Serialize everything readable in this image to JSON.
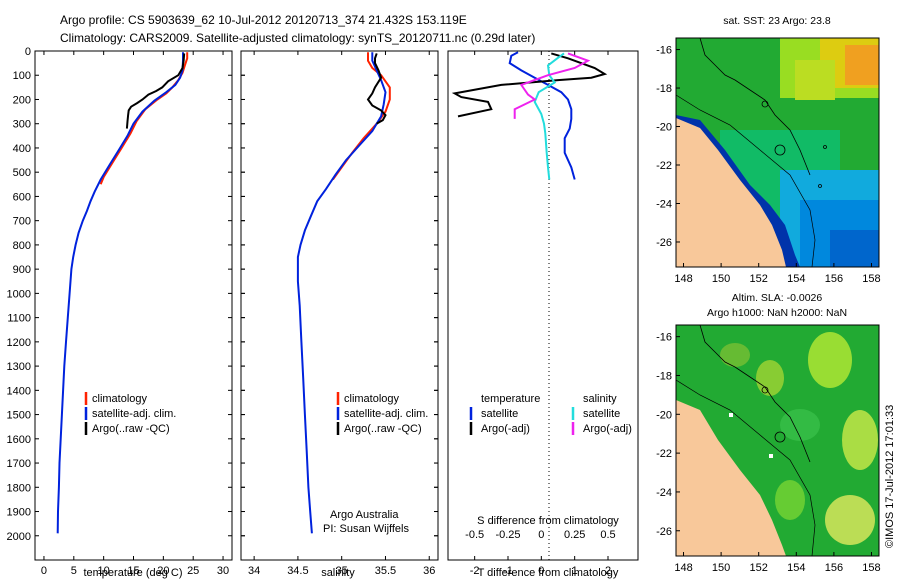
{
  "header": {
    "line1": "Argo profile: CS 5903639_62 10-Jul-2012 20120713_374 21.432S 153.119E",
    "line2": "Climatology: CARS2009. Satellite-adjusted climatology: synTS_20120711.nc (0.29d later)"
  },
  "colors": {
    "climatology": "#ff2200",
    "satellite": "#0022dd",
    "argo": "#000000",
    "sat_salinity": "#22dddd",
    "argo_salinity": "#ee22ee",
    "land": "#f8c89a"
  },
  "chart_data": [
    {
      "type": "line",
      "name": "temperature-profile",
      "xlabel": "temperature (deg C)",
      "ylabel": "",
      "xlim": [
        -1.5,
        31.5
      ],
      "ylim": [
        2100,
        0
      ],
      "xticks": [
        "0",
        "5",
        "10",
        "15",
        "20",
        "25",
        "30"
      ],
      "yticks": [
        "0",
        "100",
        "200",
        "300",
        "400",
        "500",
        "600",
        "700",
        "800",
        "900",
        "1000",
        "1100",
        "1200",
        "1300",
        "1400",
        "1500",
        "1600",
        "1700",
        "1800",
        "1900",
        "2000"
      ],
      "legend": [
        "climatology",
        "satellite-adj. clim.",
        "Argo(..raw -QC)"
      ],
      "series": [
        {
          "name": "climatology",
          "color": "#ff2200",
          "points": [
            [
              24,
              5
            ],
            [
              24,
              30
            ],
            [
              23.6,
              60
            ],
            [
              23.2,
              90
            ],
            [
              22.5,
              120
            ],
            [
              21.5,
              150
            ],
            [
              20.5,
              175
            ],
            [
              19,
              200
            ],
            [
              17,
              240
            ],
            [
              15.5,
              290
            ],
            [
              14.5,
              340
            ],
            [
              13,
              400
            ],
            [
              11.5,
              460
            ],
            [
              10,
              520
            ],
            [
              9.5,
              550
            ]
          ]
        },
        {
          "name": "satellite-adj. clim.",
          "color": "#0022dd",
          "points": [
            [
              23.3,
              5
            ],
            [
              23.3,
              40
            ],
            [
              23.2,
              80
            ],
            [
              22.8,
              110
            ],
            [
              22,
              140
            ],
            [
              20.5,
              170
            ],
            [
              18.5,
              205
            ],
            [
              16.5,
              250
            ],
            [
              15,
              300
            ],
            [
              14,
              350
            ],
            [
              12.5,
              410
            ],
            [
              11,
              470
            ],
            [
              9.5,
              530
            ],
            [
              8.5,
              580
            ],
            [
              7.8,
              620
            ],
            [
              7.2,
              660
            ],
            [
              6.5,
              700
            ],
            [
              5.8,
              750
            ],
            [
              5.3,
              800
            ],
            [
              4.9,
              850
            ],
            [
              4.6,
              900
            ],
            [
              4.3,
              1000
            ],
            [
              4,
              1100
            ],
            [
              3.7,
              1200
            ],
            [
              3.4,
              1300
            ],
            [
              3.2,
              1400
            ],
            [
              3,
              1500
            ],
            [
              2.8,
              1600
            ],
            [
              2.6,
              1700
            ],
            [
              2.5,
              1800
            ],
            [
              2.35,
              1900
            ],
            [
              2.3,
              1990
            ]
          ]
        },
        {
          "name": "Argo",
          "color": "#000000",
          "points": [
            [
              23.5,
              10
            ],
            [
              23.4,
              40
            ],
            [
              23.2,
              70
            ],
            [
              22.5,
              100
            ],
            [
              20.8,
              125
            ],
            [
              19.8,
              150
            ],
            [
              18.8,
              165
            ],
            [
              17.5,
              180
            ],
            [
              16.5,
              200
            ],
            [
              15.6,
              215
            ],
            [
              14.6,
              230
            ],
            [
              14.2,
              245
            ],
            [
              14.1,
              265
            ],
            [
              14.0,
              290
            ],
            [
              13.9,
              320
            ]
          ]
        }
      ]
    },
    {
      "type": "line",
      "name": "salinity-profile",
      "xlabel": "salinity",
      "xlim": [
        33.85,
        36.1
      ],
      "ylim": [
        2100,
        0
      ],
      "xticks": [
        "34",
        "34.5",
        "35",
        "35.5",
        "36"
      ],
      "legend": [
        "climatology",
        "satellite-adj. clim.",
        "Argo(..raw -QC)"
      ],
      "annotation": [
        "Argo Australia",
        "PI: Susan Wijffels"
      ],
      "series": [
        {
          "name": "climatology",
          "color": "#ff2200",
          "points": [
            [
              35.3,
              5
            ],
            [
              35.3,
              40
            ],
            [
              35.35,
              70
            ],
            [
              35.45,
              100
            ],
            [
              35.55,
              150
            ],
            [
              35.55,
              200
            ],
            [
              35.5,
              250
            ],
            [
              35.4,
              300
            ],
            [
              35.25,
              360
            ],
            [
              35.12,
              420
            ],
            [
              35.0,
              480
            ],
            [
              34.9,
              530
            ]
          ]
        },
        {
          "name": "satellite-adj. clim.",
          "color": "#0022dd",
          "points": [
            [
              35.35,
              5
            ],
            [
              35.35,
              40
            ],
            [
              35.4,
              80
            ],
            [
              35.45,
              120
            ],
            [
              35.5,
              170
            ],
            [
              35.48,
              220
            ],
            [
              35.45,
              270
            ],
            [
              35.35,
              330
            ],
            [
              35.2,
              390
            ],
            [
              35.05,
              450
            ],
            [
              34.93,
              510
            ],
            [
              34.82,
              570
            ],
            [
              34.72,
              620
            ],
            [
              34.65,
              680
            ],
            [
              34.58,
              740
            ],
            [
              34.53,
              800
            ],
            [
              34.5,
              850
            ],
            [
              34.5,
              950
            ],
            [
              34.52,
              1050
            ],
            [
              34.54,
              1200
            ],
            [
              34.56,
              1350
            ],
            [
              34.58,
              1500
            ],
            [
              34.6,
              1650
            ],
            [
              34.62,
              1800
            ],
            [
              34.64,
              1900
            ],
            [
              34.66,
              1990
            ]
          ]
        },
        {
          "name": "Argo",
          "color": "#000000",
          "points": [
            [
              35.4,
              10
            ],
            [
              35.38,
              30
            ],
            [
              35.38,
              50
            ],
            [
              35.42,
              80
            ],
            [
              35.45,
              110
            ],
            [
              35.38,
              150
            ],
            [
              35.35,
              175
            ],
            [
              35.3,
              200
            ],
            [
              35.35,
              225
            ],
            [
              35.45,
              245
            ],
            [
              35.5,
              265
            ],
            [
              35.47,
              285
            ],
            [
              35.4,
              300
            ]
          ]
        }
      ]
    },
    {
      "type": "line",
      "name": "difference-profile",
      "xlabel": "T difference from climatology",
      "xlabel_top": "S difference from climatology",
      "xlim": [
        -2.8,
        2.9
      ],
      "ylim": [
        2100,
        0
      ],
      "xticks": [
        "-2",
        "-1",
        "0",
        "1",
        "2"
      ],
      "xticks_s": [
        "-0.5",
        "-0.25",
        "0",
        "0.25",
        "0.5"
      ],
      "legend_temperature": {
        "title": "temperature",
        "items": [
          "satellite",
          "Argo(-adj)"
        ]
      },
      "legend_salinity": {
        "title": "salinity",
        "items": [
          "satellite",
          "Argo(-adj)"
        ]
      },
      "series": [
        {
          "name": "T satellite",
          "color": "#0022dd",
          "points": [
            [
              -0.7,
              5
            ],
            [
              -0.9,
              20
            ],
            [
              -0.95,
              50
            ],
            [
              -0.6,
              80
            ],
            [
              -0.2,
              110
            ],
            [
              0.2,
              140
            ],
            [
              0.6,
              170
            ],
            [
              0.8,
              200
            ],
            [
              0.9,
              240
            ],
            [
              0.9,
              280
            ],
            [
              0.85,
              320
            ],
            [
              0.7,
              360
            ],
            [
              0.7,
              420
            ],
            [
              0.9,
              480
            ],
            [
              1.0,
              530
            ]
          ]
        },
        {
          "name": "T Argo",
          "color": "#000000",
          "points": [
            [
              0.3,
              10
            ],
            [
              0.8,
              30
            ],
            [
              1.6,
              70
            ],
            [
              1.9,
              95
            ],
            [
              1.5,
              110
            ],
            [
              0.5,
              120
            ],
            [
              -1.2,
              140
            ],
            [
              -2.6,
              175
            ],
            [
              -2.4,
              190
            ],
            [
              -1.6,
              210
            ],
            [
              -1.5,
              240
            ],
            [
              -2.5,
              270
            ]
          ]
        },
        {
          "name": "S satellite",
          "color": "#22dddd",
          "points": [
            [
              0.17,
              10
            ],
            [
              0.12,
              30
            ],
            [
              0.05,
              60
            ],
            [
              0.06,
              100
            ],
            [
              0.1,
              130
            ],
            [
              -0.02,
              170
            ],
            [
              -0.05,
              210
            ],
            [
              0.0,
              260
            ],
            [
              0.02,
              300
            ],
            [
              0.03,
              340
            ],
            [
              0.04,
              420
            ],
            [
              0.05,
              480
            ],
            [
              0.06,
              530
            ]
          ]
        },
        {
          "name": "S Argo",
          "color": "#ee22ee",
          "points": [
            [
              0.2,
              10
            ],
            [
              0.35,
              40
            ],
            [
              0.25,
              70
            ],
            [
              0.05,
              100
            ],
            [
              -0.15,
              140
            ],
            [
              -0.1,
              180
            ],
            [
              -0.05,
              200
            ],
            [
              -0.2,
              240
            ],
            [
              -0.2,
              280
            ]
          ]
        }
      ]
    }
  ],
  "maps": {
    "sst": {
      "title": "sat. SST: 23 Argo: 23.8",
      "yticks": [
        "-16",
        "-18",
        "-20",
        "-22",
        "-24",
        "-26"
      ],
      "xticks": [
        "148",
        "150",
        "152",
        "154",
        "156",
        "158"
      ]
    },
    "sla": {
      "title1": "Altim. SLA: -0.0026",
      "title2": "Argo h1000: NaN h2000: NaN",
      "yticks": [
        "-16",
        "-18",
        "-20",
        "-22",
        "-24",
        "-26"
      ],
      "xticks": [
        "148",
        "150",
        "152",
        "154",
        "156",
        "158"
      ]
    }
  },
  "footer": {
    "stamp": "©IMOS 17-Jul-2012 17:01:33"
  }
}
